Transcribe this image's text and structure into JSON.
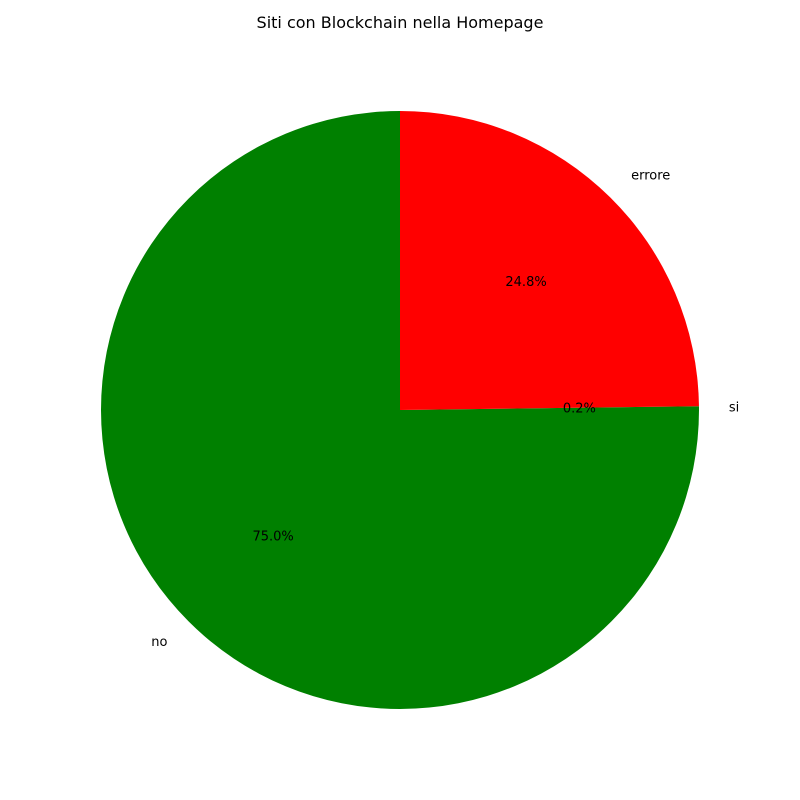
{
  "chart_data": {
    "type": "pie",
    "title": "Siti con Blockchain nella Homepage",
    "slices": [
      {
        "label": "si",
        "value": 0.2,
        "pct_label": "0.2%",
        "color": "#008000"
      },
      {
        "label": "errore",
        "value": 24.8,
        "pct_label": "24.8%",
        "color": "#ff0000"
      },
      {
        "label": "no",
        "value": 75.0,
        "pct_label": "75.0%",
        "color": "#008000"
      }
    ],
    "start_angle": 0,
    "direction": "counterclockwise-from-right"
  }
}
